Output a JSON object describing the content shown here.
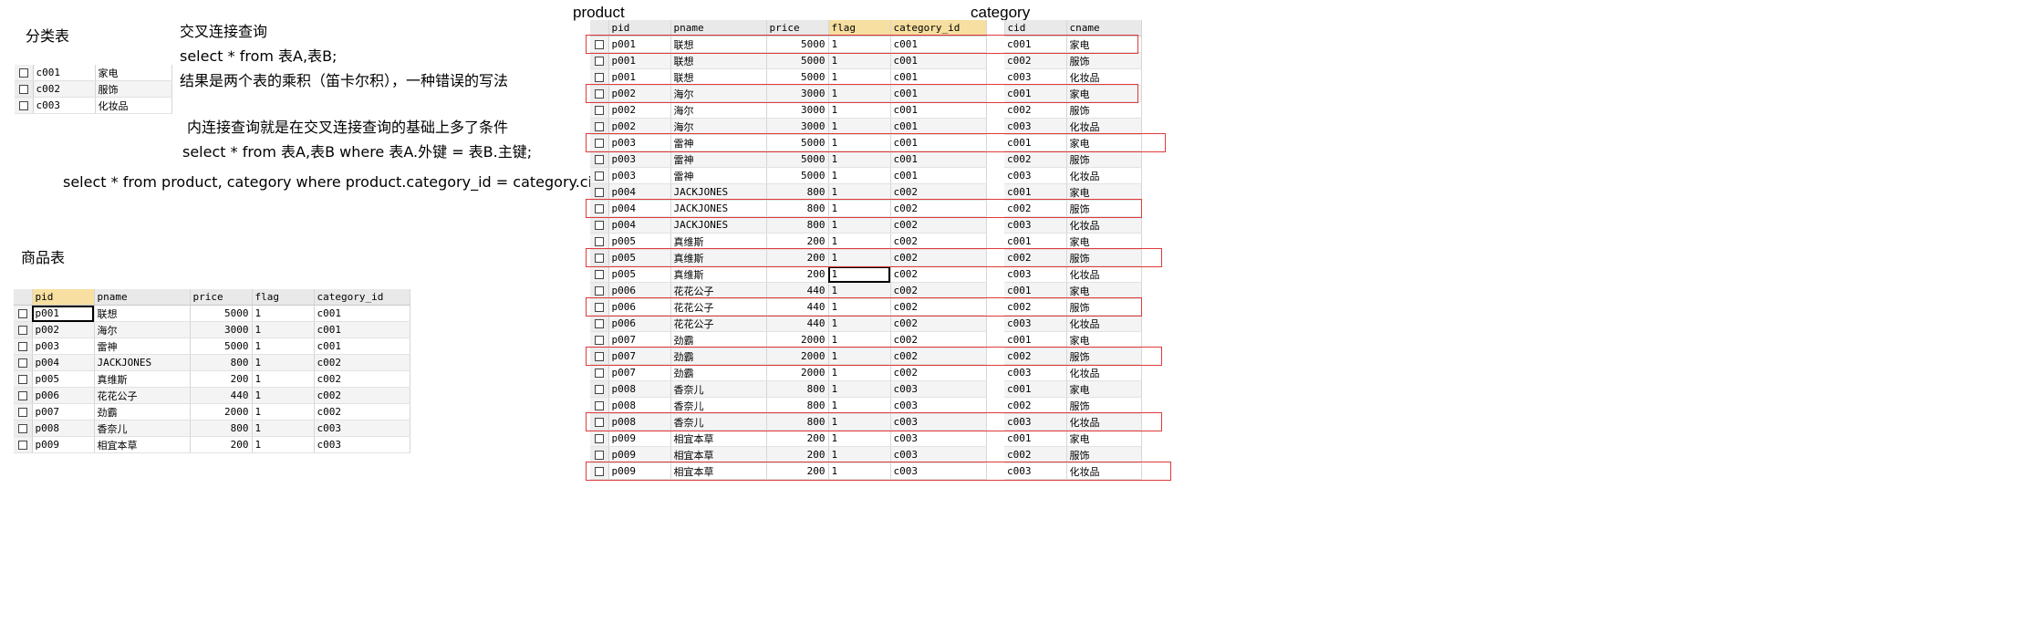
{
  "notes": {
    "category_title": "分类表",
    "product_title": "商品表",
    "cross_join_heading": "交叉连接查询",
    "cross_join_sql": "select * from 表A,表B;",
    "cross_join_result": "结果是两个表的乘积（笛卡尔积），一种错误的写法",
    "inner_join_desc": "内连接查询就是在交叉连接查询的基础上多了条件",
    "inner_join_sql": "select * from 表A,表B where 表A.外键 = 表B.主键;",
    "example_sql": "select * from product, category where product.category_id = category.cid"
  },
  "labels": {
    "product": "product",
    "category": "category"
  },
  "category_table": {
    "rows": [
      [
        "c001",
        "家电"
      ],
      [
        "c002",
        "服饰"
      ],
      [
        "c003",
        "化妆品"
      ]
    ]
  },
  "product_table": {
    "headers": [
      "pid",
      "pname",
      "price",
      "flag",
      "category_id"
    ],
    "rows": [
      [
        "p001",
        "联想",
        "5000",
        "1",
        "c001"
      ],
      [
        "p002",
        "海尔",
        "3000",
        "1",
        "c001"
      ],
      [
        "p003",
        "雷神",
        "5000",
        "1",
        "c001"
      ],
      [
        "p004",
        "JACKJONES",
        "800",
        "1",
        "c002"
      ],
      [
        "p005",
        "真维斯",
        "200",
        "1",
        "c002"
      ],
      [
        "p006",
        "花花公子",
        "440",
        "1",
        "c002"
      ],
      [
        "p007",
        "劲霸",
        "2000",
        "1",
        "c002"
      ],
      [
        "p008",
        "香奈儿",
        "800",
        "1",
        "c003"
      ],
      [
        "p009",
        "相宜本草",
        "200",
        "1",
        "c003"
      ]
    ]
  },
  "cross_table": {
    "product_headers": [
      "pid",
      "pname",
      "price",
      "flag",
      "category_id"
    ],
    "category_headers": [
      "cid",
      "cname"
    ],
    "rows": [
      [
        "p001",
        "联想",
        "5000",
        "1",
        "c001",
        "c001",
        "家电"
      ],
      [
        "p001",
        "联想",
        "5000",
        "1",
        "c001",
        "c002",
        "服饰"
      ],
      [
        "p001",
        "联想",
        "5000",
        "1",
        "c001",
        "c003",
        "化妆品"
      ],
      [
        "p002",
        "海尔",
        "3000",
        "1",
        "c001",
        "c001",
        "家电"
      ],
      [
        "p002",
        "海尔",
        "3000",
        "1",
        "c001",
        "c002",
        "服饰"
      ],
      [
        "p002",
        "海尔",
        "3000",
        "1",
        "c001",
        "c003",
        "化妆品"
      ],
      [
        "p003",
        "雷神",
        "5000",
        "1",
        "c001",
        "c001",
        "家电"
      ],
      [
        "p003",
        "雷神",
        "5000",
        "1",
        "c001",
        "c002",
        "服饰"
      ],
      [
        "p003",
        "雷神",
        "5000",
        "1",
        "c001",
        "c003",
        "化妆品"
      ],
      [
        "p004",
        "JACKJONES",
        "800",
        "1",
        "c002",
        "c001",
        "家电"
      ],
      [
        "p004",
        "JACKJONES",
        "800",
        "1",
        "c002",
        "c002",
        "服饰"
      ],
      [
        "p004",
        "JACKJONES",
        "800",
        "1",
        "c002",
        "c003",
        "化妆品"
      ],
      [
        "p005",
        "真维斯",
        "200",
        "1",
        "c002",
        "c001",
        "家电"
      ],
      [
        "p005",
        "真维斯",
        "200",
        "1",
        "c002",
        "c002",
        "服饰"
      ],
      [
        "p005",
        "真维斯",
        "200",
        "1",
        "c002",
        "c003",
        "化妆品"
      ],
      [
        "p006",
        "花花公子",
        "440",
        "1",
        "c002",
        "c001",
        "家电"
      ],
      [
        "p006",
        "花花公子",
        "440",
        "1",
        "c002",
        "c002",
        "服饰"
      ],
      [
        "p006",
        "花花公子",
        "440",
        "1",
        "c002",
        "c003",
        "化妆品"
      ],
      [
        "p007",
        "劲霸",
        "2000",
        "1",
        "c002",
        "c001",
        "家电"
      ],
      [
        "p007",
        "劲霸",
        "2000",
        "1",
        "c002",
        "c002",
        "服饰"
      ],
      [
        "p007",
        "劲霸",
        "2000",
        "1",
        "c002",
        "c003",
        "化妆品"
      ],
      [
        "p008",
        "香奈儿",
        "800",
        "1",
        "c003",
        "c001",
        "家电"
      ],
      [
        "p008",
        "香奈儿",
        "800",
        "1",
        "c003",
        "c002",
        "服饰"
      ],
      [
        "p008",
        "香奈儿",
        "800",
        "1",
        "c003",
        "c003",
        "化妆品"
      ],
      [
        "p009",
        "相宜本草",
        "200",
        "1",
        "c003",
        "c001",
        "家电"
      ],
      [
        "p009",
        "相宜本草",
        "200",
        "1",
        "c003",
        "c002",
        "服饰"
      ],
      [
        "p009",
        "相宜本草",
        "200",
        "1",
        "c003",
        "c003",
        "化妆品"
      ]
    ],
    "matched_row_numbers": [
      1,
      4,
      7,
      11,
      14,
      17,
      20,
      24,
      27
    ]
  },
  "colors": {
    "highlight_border": "#e03a3a",
    "sorted_header": "#f6dfa0"
  }
}
